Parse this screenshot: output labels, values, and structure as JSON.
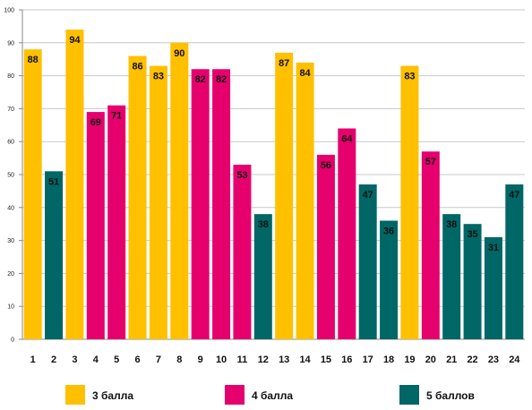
{
  "chart_data": {
    "type": "bar",
    "categories": [
      "1",
      "2",
      "3",
      "4",
      "5",
      "6",
      "7",
      "8",
      "9",
      "10",
      "11",
      "12",
      "13",
      "14",
      "15",
      "16",
      "17",
      "18",
      "19",
      "20",
      "21",
      "22",
      "23",
      "24"
    ],
    "values": [
      88,
      51,
      94,
      69,
      71,
      86,
      83,
      90,
      82,
      82,
      53,
      38,
      87,
      84,
      56,
      64,
      47,
      36,
      83,
      57,
      38,
      35,
      31,
      47
    ],
    "groups": [
      "3 балла",
      "5 баллов",
      "3 балла",
      "4 балла",
      "4 балла",
      "3 балла",
      "3 балла",
      "3 балла",
      "4 балла",
      "4 балла",
      "4 балла",
      "5 баллов",
      "3 балла",
      "3 балла",
      "4 балла",
      "4 балла",
      "5 баллов",
      "5 баллов",
      "3 балла",
      "4 балла",
      "5 баллов",
      "5 баллов",
      "5 баллов",
      "5 баллов"
    ],
    "legend": [
      {
        "name": "3 балла",
        "color": "#FFC000"
      },
      {
        "name": "4 балла",
        "color": "#E6006E"
      },
      {
        "name": "5 баллов",
        "color": "#006666"
      }
    ],
    "ylim": [
      0,
      100
    ],
    "yticks": [
      0,
      10,
      20,
      30,
      40,
      50,
      60,
      70,
      80,
      90,
      100
    ],
    "grid": true,
    "legend_position": "bottom",
    "title": "",
    "xlabel": "",
    "ylabel": ""
  }
}
